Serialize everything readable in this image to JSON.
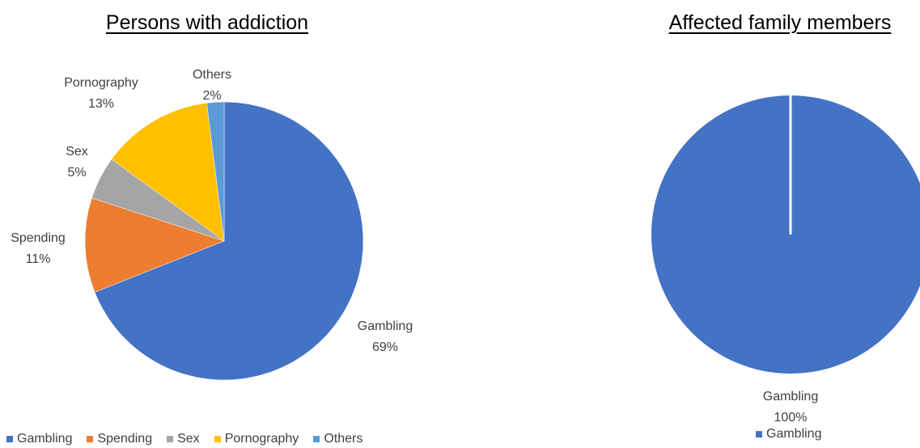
{
  "chart_data": [
    {
      "type": "pie",
      "title": "Persons with addiction",
      "categories": [
        "Gambling",
        "Spending",
        "Sex",
        "Pornography",
        "Others"
      ],
      "values": [
        69,
        11,
        5,
        13,
        2
      ],
      "value_labels": [
        "69%",
        "11%",
        "5%",
        "13%",
        "2%"
      ],
      "colors": [
        "#4472C4",
        "#ED7D31",
        "#A5A5A5",
        "#FFC000",
        "#5B9BD5"
      ],
      "legend": "bottom",
      "legend_labels": [
        "Gambling",
        "Spending",
        "Sex",
        "Pornography",
        "Others"
      ]
    },
    {
      "type": "pie",
      "title": "Affected family members",
      "categories": [
        "Gambling"
      ],
      "values": [
        100
      ],
      "value_labels": [
        "100%"
      ],
      "colors": [
        "#4472C4"
      ],
      "legend": "bottom",
      "legend_labels": [
        "Gambling"
      ]
    }
  ]
}
